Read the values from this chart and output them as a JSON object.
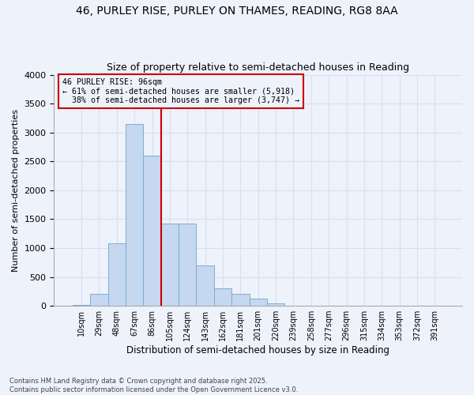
{
  "title_line1": "46, PURLEY RISE, PURLEY ON THAMES, READING, RG8 8AA",
  "title_line2": "Size of property relative to semi-detached houses in Reading",
  "xlabel": "Distribution of semi-detached houses by size in Reading",
  "ylabel": "Number of semi-detached properties",
  "categories": [
    "10sqm",
    "29sqm",
    "48sqm",
    "67sqm",
    "86sqm",
    "105sqm",
    "124sqm",
    "143sqm",
    "162sqm",
    "181sqm",
    "201sqm",
    "220sqm",
    "239sqm",
    "258sqm",
    "277sqm",
    "296sqm",
    "315sqm",
    "334sqm",
    "353sqm",
    "372sqm",
    "391sqm"
  ],
  "values": [
    15,
    200,
    1080,
    3150,
    2600,
    1430,
    1430,
    700,
    300,
    200,
    120,
    40,
    5,
    5,
    5,
    2,
    1,
    1,
    1,
    1,
    1
  ],
  "bar_color": "#c5d8ef",
  "bar_edge_color": "#7aadd4",
  "background_color": "#eef2fb",
  "grid_color": "#d8dff0",
  "ylim": [
    0,
    4000
  ],
  "yticks": [
    0,
    500,
    1000,
    1500,
    2000,
    2500,
    3000,
    3500,
    4000
  ],
  "property_label": "46 PURLEY RISE: 96sqm",
  "pct_smaller": 61,
  "pct_larger": 38,
  "n_smaller": "5,918",
  "n_larger": "3,747",
  "vline_x": 4.5,
  "vline_color": "#cc0000",
  "annotation_box_edge": "#cc0000",
  "footer_line1": "Contains HM Land Registry data © Crown copyright and database right 2025.",
  "footer_line2": "Contains public sector information licensed under the Open Government Licence v3.0."
}
